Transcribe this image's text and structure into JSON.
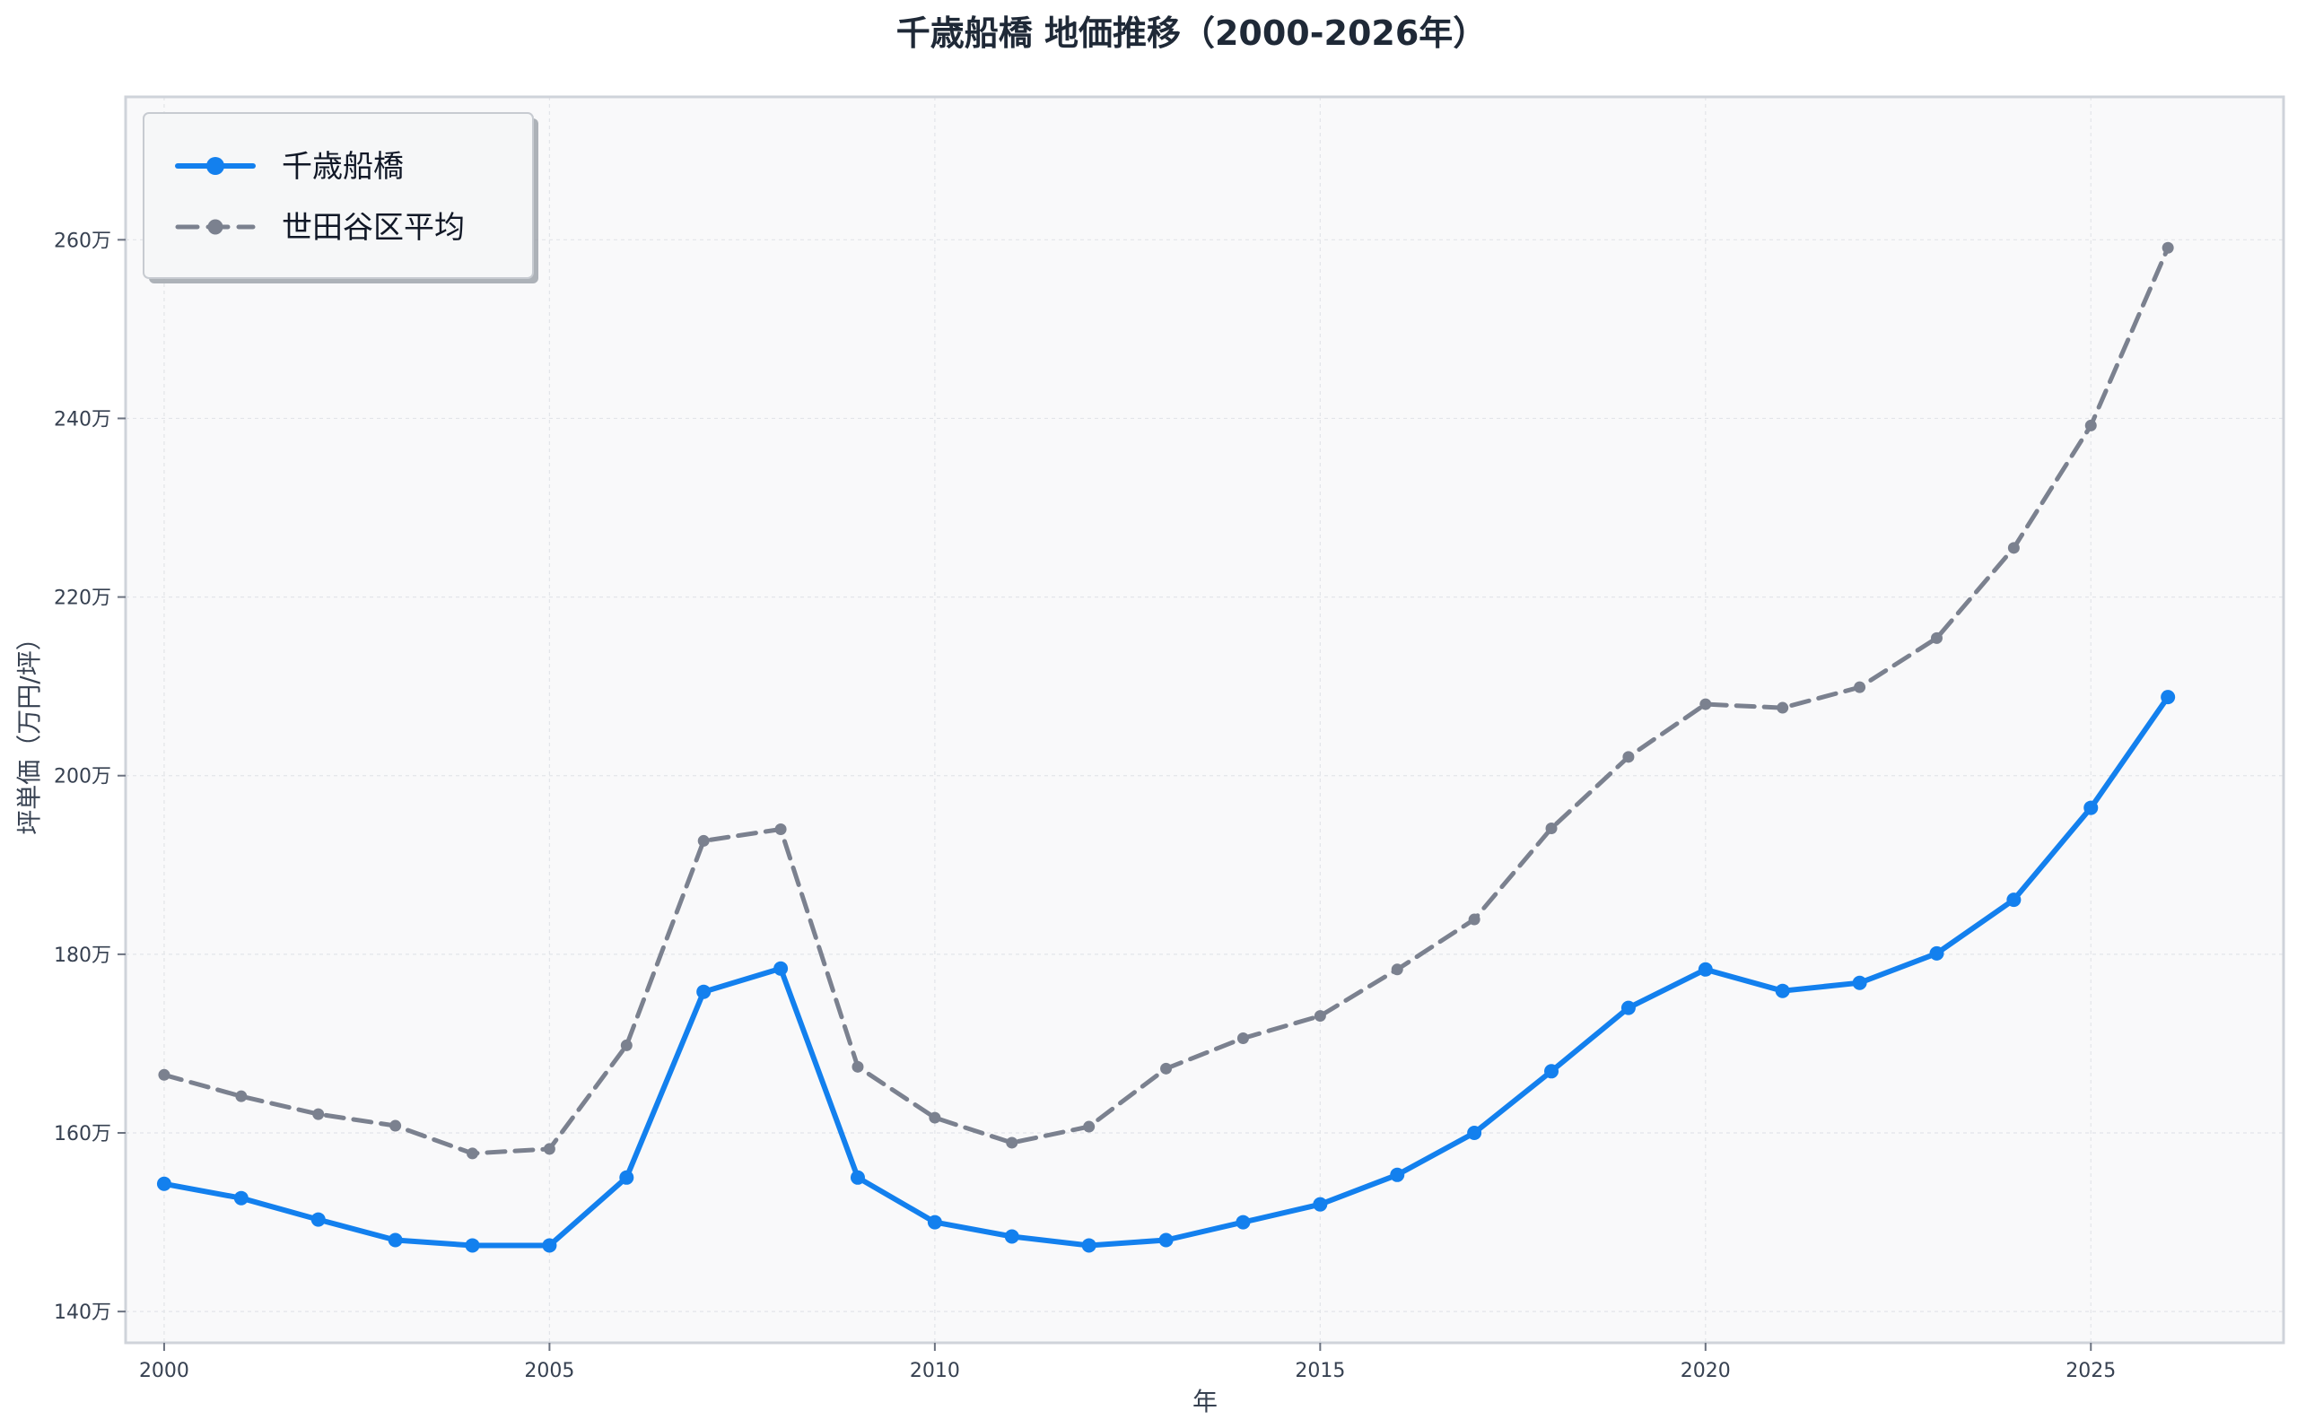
{
  "colors": {
    "series1": "#1380ee",
    "series2": "#7b818f",
    "plot_bg": "#f9f9fa",
    "grid": "#e3e5e9",
    "frame": "#cfd3da"
  },
  "chart_data": {
    "type": "line",
    "title": "千歳船橋 地価推移（2000-2026年）",
    "xlabel": "年",
    "ylabel": "坪単価（万円/坪）",
    "x": [
      2000,
      2001,
      2002,
      2003,
      2004,
      2005,
      2006,
      2007,
      2008,
      2009,
      2010,
      2011,
      2012,
      2013,
      2014,
      2015,
      2016,
      2017,
      2018,
      2019,
      2020,
      2021,
      2022,
      2023,
      2024,
      2025,
      2026
    ],
    "xlim": [
      1999.5,
      2027.5
    ],
    "ylim": [
      136.5,
      276
    ],
    "grid": true,
    "legend_position": "top-left",
    "x_ticks": [
      {
        "value": 2000,
        "label": "2000"
      },
      {
        "value": 2005,
        "label": "2005"
      },
      {
        "value": 2010,
        "label": "2010"
      },
      {
        "value": 2015,
        "label": "2015"
      },
      {
        "value": 2020,
        "label": "2020"
      },
      {
        "value": 2025,
        "label": "2025"
      }
    ],
    "y_ticks": [
      {
        "value": 140,
        "label": "140万"
      },
      {
        "value": 160,
        "label": "160万"
      },
      {
        "value": 180,
        "label": "180万"
      },
      {
        "value": 200,
        "label": "200万"
      },
      {
        "value": 220,
        "label": "220万"
      },
      {
        "value": 240,
        "label": "240万"
      },
      {
        "value": 260,
        "label": "260万"
      }
    ],
    "series": [
      {
        "name": "千歳船橋",
        "style": "solid",
        "values": [
          154.3,
          152.7,
          150.3,
          148.0,
          147.4,
          147.4,
          155.0,
          175.8,
          178.4,
          155.0,
          150.0,
          148.4,
          147.4,
          148.0,
          150.0,
          152.0,
          155.3,
          160.0,
          166.9,
          174.0,
          178.3,
          175.9,
          176.8,
          180.1,
          186.1,
          196.4,
          208.8
        ]
      },
      {
        "name": "世田谷区平均",
        "style": "dashed",
        "values": [
          166.5,
          164.1,
          162.1,
          160.8,
          157.7,
          158.2,
          169.8,
          192.7,
          194.0,
          167.4,
          161.7,
          158.9,
          160.7,
          167.2,
          170.6,
          173.1,
          178.3,
          183.9,
          194.1,
          202.1,
          208.0,
          207.6,
          209.9,
          215.4,
          225.5,
          239.2,
          259.1
        ]
      }
    ]
  }
}
